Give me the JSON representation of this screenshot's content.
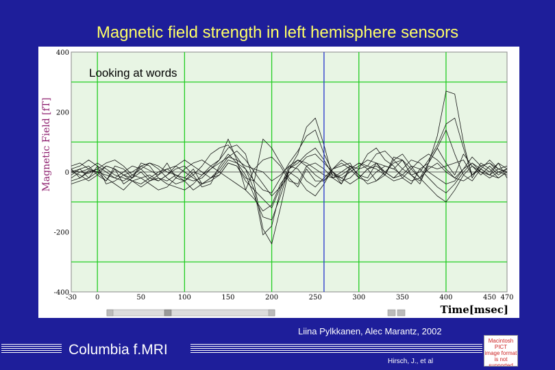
{
  "slide": {
    "title": "Magnetic field strength in left hemisphere sensors",
    "credit": "Liina Pylkkanen, Alec Marantz, 2002",
    "brand": "Columbia  f.MRI",
    "author": "Hirsch, J., et al",
    "placeholder_image": {
      "lines": [
        "Macintosh PICT",
        "image format",
        "is not supported"
      ]
    }
  },
  "colors": {
    "background": "#1e1e9a",
    "title": "#ffff66",
    "plot_bg": "#e8f5e4",
    "grid": "#22cc22",
    "traces": "#111111",
    "cursor": "#2233cc",
    "ylabel": "#8b1a6b"
  },
  "chart_data": {
    "type": "line",
    "title": "Looking at words",
    "xlabel": "Time[msec]",
    "ylabel": "Magnetic Field [fT]",
    "xlim": [
      -30,
      470
    ],
    "ylim": [
      -400,
      400
    ],
    "x_ticks": [
      "-30",
      "0",
      "50",
      "100",
      "150",
      "200",
      "250",
      "300",
      "350",
      "400",
      "450",
      "470"
    ],
    "x_tick_values": [
      -30,
      0,
      50,
      100,
      150,
      200,
      250,
      300,
      350,
      400,
      450,
      470
    ],
    "y_ticks": [
      "400",
      "200",
      "0",
      "-200",
      "-400"
    ],
    "y_tick_values": [
      400,
      200,
      0,
      -200,
      -400
    ],
    "x_grid": [
      0,
      100,
      200,
      300,
      400
    ],
    "y_grid": [
      300,
      100,
      -100,
      -300
    ],
    "cursor_x": 260,
    "grid": true,
    "x": [
      -30,
      -20,
      -10,
      0,
      10,
      20,
      30,
      40,
      50,
      60,
      70,
      80,
      90,
      100,
      110,
      120,
      130,
      140,
      150,
      160,
      170,
      180,
      190,
      200,
      210,
      220,
      230,
      240,
      250,
      260,
      270,
      280,
      290,
      300,
      310,
      320,
      330,
      340,
      350,
      360,
      370,
      380,
      390,
      400,
      410,
      420,
      430,
      440,
      450,
      460,
      470
    ],
    "series": [
      {
        "values": [
          10,
          -20,
          5,
          0,
          -30,
          10,
          -40,
          -20,
          20,
          5,
          -10,
          30,
          -20,
          -30,
          0,
          -10,
          20,
          40,
          110,
          40,
          -60,
          10,
          40,
          50,
          20,
          -30,
          -40,
          20,
          -10,
          -30,
          10,
          20,
          30,
          -20,
          10,
          30,
          -10,
          40,
          60,
          20,
          -20,
          30,
          80,
          30,
          -10,
          60,
          20,
          -10,
          20,
          -10,
          10
        ]
      },
      {
        "values": [
          -10,
          10,
          -20,
          20,
          -40,
          -30,
          -10,
          -20,
          0,
          -30,
          -20,
          -30,
          -10,
          -20,
          10,
          -40,
          -30,
          -10,
          30,
          20,
          -20,
          -30,
          110,
          80,
          30,
          -20,
          -50,
          10,
          -30,
          -30,
          0,
          -40,
          20,
          -10,
          -20,
          30,
          20,
          10,
          40,
          -10,
          -30,
          20,
          10,
          20,
          30,
          40,
          -10,
          10,
          40,
          10,
          0
        ]
      },
      {
        "values": [
          5,
          0,
          -5,
          10,
          -20,
          -40,
          -60,
          -30,
          -20,
          -10,
          -30,
          -10,
          10,
          20,
          -10,
          -50,
          -40,
          20,
          60,
          30,
          10,
          -60,
          -210,
          -180,
          -60,
          10,
          40,
          20,
          30,
          10,
          -20,
          0,
          20,
          10,
          60,
          80,
          40,
          20,
          -20,
          -40,
          10,
          30,
          80,
          140,
          60,
          -10,
          -30,
          10,
          -10,
          30,
          -20
        ]
      },
      {
        "values": [
          0,
          10,
          20,
          -10,
          -30,
          20,
          10,
          -20,
          30,
          20,
          -20,
          -40,
          -50,
          -60,
          -40,
          -10,
          10,
          40,
          80,
          90,
          60,
          -40,
          -190,
          -240,
          -120,
          10,
          60,
          150,
          180,
          90,
          -20,
          -40,
          10,
          30,
          10,
          -30,
          -10,
          50,
          40,
          -10,
          -40,
          30,
          120,
          270,
          260,
          100,
          -20,
          30,
          10,
          -20,
          0
        ]
      },
      {
        "values": [
          -20,
          0,
          10,
          30,
          10,
          -10,
          -20,
          -30,
          -40,
          -20,
          0,
          10,
          -10,
          -30,
          -60,
          -40,
          -20,
          0,
          40,
          30,
          -10,
          -80,
          -150,
          -160,
          -80,
          10,
          30,
          60,
          80,
          40,
          -10,
          -20,
          0,
          20,
          40,
          30,
          0,
          -20,
          10,
          40,
          30,
          0,
          -20,
          -40,
          -30,
          10,
          50,
          20,
          0,
          30,
          10
        ]
      },
      {
        "values": [
          20,
          30,
          10,
          0,
          -10,
          -20,
          0,
          20,
          10,
          -20,
          -30,
          -10,
          20,
          40,
          20,
          0,
          -20,
          -10,
          30,
          20,
          -30,
          -60,
          -90,
          -120,
          -50,
          20,
          10,
          -30,
          -50,
          -20,
          10,
          30,
          10,
          -20,
          -30,
          0,
          20,
          10,
          -10,
          -30,
          -20,
          10,
          30,
          0,
          -20,
          10,
          30,
          0,
          -10,
          10,
          20
        ]
      },
      {
        "values": [
          0,
          -10,
          -30,
          -10,
          20,
          10,
          -10,
          0,
          20,
          30,
          10,
          -20,
          -40,
          -30,
          -10,
          20,
          60,
          80,
          90,
          50,
          10,
          -30,
          -60,
          -70,
          -20,
          30,
          70,
          120,
          140,
          60,
          0,
          -30,
          -20,
          10,
          20,
          60,
          70,
          40,
          10,
          -10,
          0,
          40,
          90,
          160,
          180,
          80,
          -10,
          20,
          30,
          0,
          10
        ]
      },
      {
        "values": [
          -30,
          -20,
          0,
          10,
          30,
          40,
          20,
          -10,
          -20,
          -40,
          -60,
          -50,
          -20,
          10,
          30,
          40,
          20,
          0,
          -20,
          -40,
          -60,
          -90,
          -130,
          -110,
          -40,
          0,
          -20,
          -60,
          -80,
          -40,
          10,
          40,
          20,
          -10,
          -40,
          -30,
          0,
          30,
          40,
          10,
          -20,
          -50,
          -80,
          -100,
          -60,
          -10,
          20,
          0,
          -20,
          0,
          -10
        ]
      },
      {
        "values": [
          10,
          20,
          40,
          20,
          0,
          -20,
          -30,
          -10,
          10,
          30,
          20,
          0,
          -10,
          -20,
          -30,
          -20,
          10,
          30,
          50,
          40,
          20,
          10,
          0,
          -30,
          -10,
          20,
          40,
          30,
          10,
          -10,
          -20,
          -10,
          10,
          30,
          20,
          10,
          -10,
          -30,
          -20,
          10,
          40,
          60,
          40,
          10,
          -20,
          -30,
          -10,
          20,
          30,
          10,
          0
        ]
      },
      {
        "values": [
          -40,
          -30,
          -20,
          0,
          20,
          10,
          -10,
          -30,
          -50,
          -30,
          -10,
          10,
          20,
          0,
          -20,
          -40,
          -20,
          10,
          50,
          70,
          40,
          0,
          -40,
          -80,
          -50,
          -10,
          20,
          50,
          60,
          30,
          0,
          -20,
          -40,
          -20,
          10,
          20,
          0,
          -20,
          -10,
          20,
          10,
          -20,
          -50,
          -70,
          -40,
          0,
          30,
          10,
          -10,
          -20,
          0
        ]
      }
    ]
  }
}
